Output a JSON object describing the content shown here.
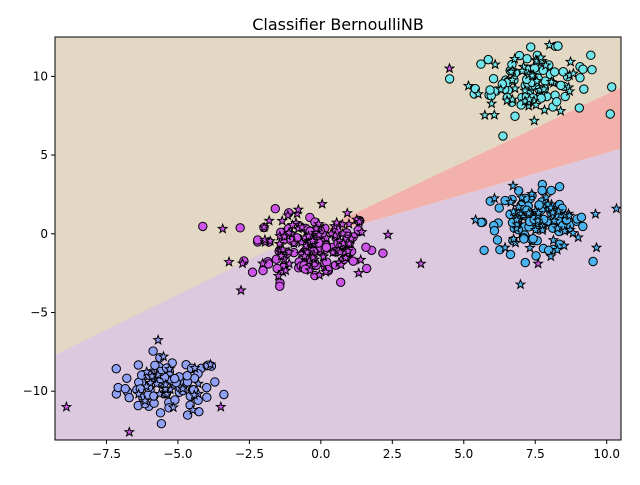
{
  "chart_data": {
    "type": "scatter",
    "title": "Classifier BernoulliNB",
    "xlabel": "",
    "ylabel": "",
    "xlim": [
      -9.3,
      10.5
    ],
    "ylim": [
      -13.1,
      12.5
    ],
    "xticks": [
      -7.5,
      -5.0,
      -2.5,
      0.0,
      2.5,
      5.0,
      7.5,
      10.0
    ],
    "yticks": [
      -10,
      -5,
      0,
      5,
      10
    ],
    "xtick_labels": [
      "−7.5",
      "−5.0",
      "−2.5",
      "0.0",
      "2.5",
      "5.0",
      "7.5",
      "10.0"
    ],
    "ytick_labels": [
      "−10",
      "−5",
      "0",
      "5",
      "10"
    ],
    "grid": false,
    "legend": "none",
    "decision_regions": [
      {
        "color": "#e2d8c3",
        "polygon": [
          [
            -9.3,
            -7.7
          ],
          [
            -9.3,
            12.5
          ],
          [
            10.5,
            12.5
          ],
          [
            10.5,
            9.3
          ]
        ]
      },
      {
        "color": "#f2b2ab",
        "polygon": [
          [
            -9.3,
            -7.7
          ],
          [
            10.5,
            9.3
          ],
          [
            10.5,
            5.4
          ],
          [
            -2.0,
            -1.2
          ]
        ]
      },
      {
        "color": "#dcc9df",
        "polygon": [
          [
            -9.3,
            -7.7
          ],
          [
            -2.0,
            -1.2
          ],
          [
            10.5,
            5.4
          ],
          [
            10.5,
            -13.1
          ],
          [
            -9.3,
            -13.1
          ]
        ]
      }
    ],
    "clusters": [
      {
        "color": "#8fa0f5",
        "center": [
          -5.3,
          -9.7
        ],
        "spread": [
          0.9,
          0.9
        ],
        "n_points": 80,
        "n_stars": 25
      },
      {
        "color": "#cc55e8",
        "center": [
          -0.3,
          -0.8
        ],
        "spread": [
          1.1,
          1.1
        ],
        "n_points": 110,
        "n_stars": 90
      },
      {
        "color": "#70e6ea",
        "center": [
          7.4,
          9.6
        ],
        "spread": [
          1.0,
          1.0
        ],
        "n_points": 80,
        "n_stars": 45
      },
      {
        "color": "#4cb3ef",
        "center": [
          7.5,
          0.8
        ],
        "spread": [
          0.9,
          1.0
        ],
        "n_points": 90,
        "n_stars": 50
      }
    ],
    "outliers": [
      [
        -8.9,
        -11.0
      ],
      [
        -6.7,
        -12.6
      ],
      [
        -3.5,
        -11.0
      ],
      [
        3.5,
        -1.9
      ],
      [
        7.6,
        -1.9
      ],
      [
        4.5,
        10.5
      ]
    ]
  }
}
